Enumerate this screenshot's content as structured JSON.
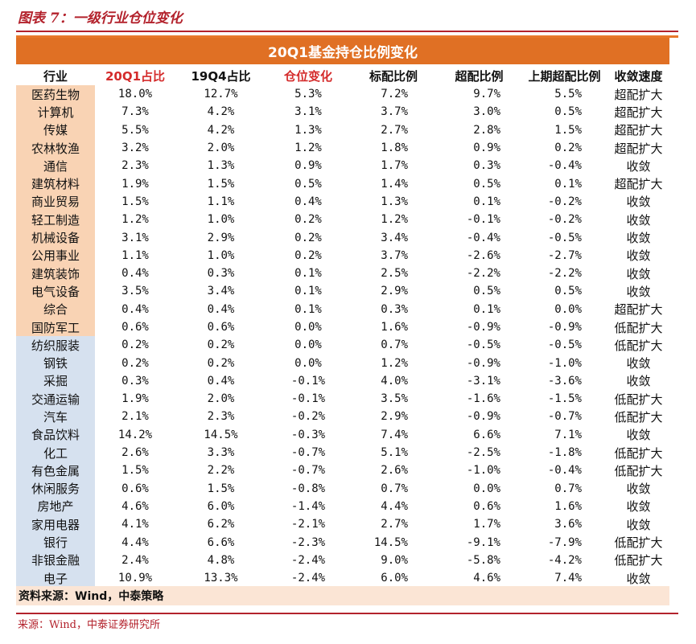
{
  "figure_title": "图表 7：一级行业仓位变化",
  "table_title": "20Q1基金持仓比例变化",
  "columns": [
    "行业",
    "20Q1占比",
    "19Q4占比",
    "仓位变化",
    "标配比例",
    "超配比例",
    "上期超配比例",
    "收敛速度"
  ],
  "rows": [
    {
      "industry": "医药生物",
      "q1": "18.0%",
      "q4": "12.7%",
      "change": "5.3%",
      "standard": "7.2%",
      "over": "9.7%",
      "prev_over": "5.5%",
      "speed": "超配扩大",
      "group": "up"
    },
    {
      "industry": "计算机",
      "q1": "7.3%",
      "q4": "4.2%",
      "change": "3.1%",
      "standard": "3.7%",
      "over": "3.0%",
      "prev_over": "0.5%",
      "speed": "超配扩大",
      "group": "up"
    },
    {
      "industry": "传媒",
      "q1": "5.5%",
      "q4": "4.2%",
      "change": "1.3%",
      "standard": "2.7%",
      "over": "2.8%",
      "prev_over": "1.5%",
      "speed": "超配扩大",
      "group": "up"
    },
    {
      "industry": "农林牧渔",
      "q1": "3.2%",
      "q4": "2.0%",
      "change": "1.2%",
      "standard": "1.8%",
      "over": "0.9%",
      "prev_over": "0.2%",
      "speed": "超配扩大",
      "group": "up"
    },
    {
      "industry": "通信",
      "q1": "2.3%",
      "q4": "1.3%",
      "change": "0.9%",
      "standard": "1.7%",
      "over": "0.3%",
      "prev_over": "-0.4%",
      "speed": "收敛",
      "group": "up"
    },
    {
      "industry": "建筑材料",
      "q1": "1.9%",
      "q4": "1.5%",
      "change": "0.5%",
      "standard": "1.4%",
      "over": "0.5%",
      "prev_over": "0.1%",
      "speed": "超配扩大",
      "group": "up"
    },
    {
      "industry": "商业贸易",
      "q1": "1.5%",
      "q4": "1.1%",
      "change": "0.4%",
      "standard": "1.3%",
      "over": "0.1%",
      "prev_over": "-0.2%",
      "speed": "收敛",
      "group": "up"
    },
    {
      "industry": "轻工制造",
      "q1": "1.2%",
      "q4": "1.0%",
      "change": "0.2%",
      "standard": "1.2%",
      "over": "-0.1%",
      "prev_over": "-0.2%",
      "speed": "收敛",
      "group": "up"
    },
    {
      "industry": "机械设备",
      "q1": "3.1%",
      "q4": "2.9%",
      "change": "0.2%",
      "standard": "3.4%",
      "over": "-0.4%",
      "prev_over": "-0.5%",
      "speed": "收敛",
      "group": "up"
    },
    {
      "industry": "公用事业",
      "q1": "1.1%",
      "q4": "1.0%",
      "change": "0.2%",
      "standard": "3.7%",
      "over": "-2.6%",
      "prev_over": "-2.7%",
      "speed": "收敛",
      "group": "up"
    },
    {
      "industry": "建筑装饰",
      "q1": "0.4%",
      "q4": "0.3%",
      "change": "0.1%",
      "standard": "2.5%",
      "over": "-2.2%",
      "prev_over": "-2.2%",
      "speed": "收敛",
      "group": "up"
    },
    {
      "industry": "电气设备",
      "q1": "3.5%",
      "q4": "3.4%",
      "change": "0.1%",
      "standard": "2.9%",
      "over": "0.5%",
      "prev_over": "0.5%",
      "speed": "收敛",
      "group": "up"
    },
    {
      "industry": "综合",
      "q1": "0.4%",
      "q4": "0.4%",
      "change": "0.1%",
      "standard": "0.3%",
      "over": "0.1%",
      "prev_over": "0.0%",
      "speed": "超配扩大",
      "group": "up"
    },
    {
      "industry": "国防军工",
      "q1": "0.6%",
      "q4": "0.6%",
      "change": "0.0%",
      "standard": "1.6%",
      "over": "-0.9%",
      "prev_over": "-0.9%",
      "speed": "低配扩大",
      "group": "up"
    },
    {
      "industry": "纺织服装",
      "q1": "0.2%",
      "q4": "0.2%",
      "change": "0.0%",
      "standard": "0.7%",
      "over": "-0.5%",
      "prev_over": "-0.5%",
      "speed": "低配扩大",
      "group": "down"
    },
    {
      "industry": "钢铁",
      "q1": "0.2%",
      "q4": "0.2%",
      "change": "0.0%",
      "standard": "1.2%",
      "over": "-0.9%",
      "prev_over": "-1.0%",
      "speed": "收敛",
      "group": "down"
    },
    {
      "industry": "采掘",
      "q1": "0.3%",
      "q4": "0.4%",
      "change": "-0.1%",
      "standard": "4.0%",
      "over": "-3.1%",
      "prev_over": "-3.6%",
      "speed": "收敛",
      "group": "down"
    },
    {
      "industry": "交通运输",
      "q1": "1.9%",
      "q4": "2.0%",
      "change": "-0.1%",
      "standard": "3.5%",
      "over": "-1.6%",
      "prev_over": "-1.5%",
      "speed": "低配扩大",
      "group": "down"
    },
    {
      "industry": "汽车",
      "q1": "2.1%",
      "q4": "2.3%",
      "change": "-0.2%",
      "standard": "2.9%",
      "over": "-0.9%",
      "prev_over": "-0.7%",
      "speed": "低配扩大",
      "group": "down"
    },
    {
      "industry": "食品饮料",
      "q1": "14.2%",
      "q4": "14.5%",
      "change": "-0.3%",
      "standard": "7.4%",
      "over": "6.6%",
      "prev_over": "7.1%",
      "speed": "收敛",
      "group": "down"
    },
    {
      "industry": "化工",
      "q1": "2.6%",
      "q4": "3.3%",
      "change": "-0.7%",
      "standard": "5.1%",
      "over": "-2.5%",
      "prev_over": "-1.8%",
      "speed": "低配扩大",
      "group": "down"
    },
    {
      "industry": "有色金属",
      "q1": "1.5%",
      "q4": "2.2%",
      "change": "-0.7%",
      "standard": "2.6%",
      "over": "-1.0%",
      "prev_over": "-0.4%",
      "speed": "低配扩大",
      "group": "down"
    },
    {
      "industry": "休闲服务",
      "q1": "0.6%",
      "q4": "1.5%",
      "change": "-0.8%",
      "standard": "0.7%",
      "over": "0.0%",
      "prev_over": "0.7%",
      "speed": "收敛",
      "group": "down"
    },
    {
      "industry": "房地产",
      "q1": "4.6%",
      "q4": "6.0%",
      "change": "-1.4%",
      "standard": "4.4%",
      "over": "0.6%",
      "prev_over": "1.6%",
      "speed": "收敛",
      "group": "down"
    },
    {
      "industry": "家用电器",
      "q1": "4.1%",
      "q4": "6.2%",
      "change": "-2.1%",
      "standard": "2.7%",
      "over": "1.7%",
      "prev_over": "3.6%",
      "speed": "收敛",
      "group": "down"
    },
    {
      "industry": "银行",
      "q1": "4.4%",
      "q4": "6.6%",
      "change": "-2.3%",
      "standard": "14.5%",
      "over": "-9.1%",
      "prev_over": "-7.9%",
      "speed": "低配扩大",
      "group": "down"
    },
    {
      "industry": "非银金融",
      "q1": "2.4%",
      "q4": "4.8%",
      "change": "-2.4%",
      "standard": "9.0%",
      "over": "-5.8%",
      "prev_over": "-4.2%",
      "speed": "低配扩大",
      "group": "down"
    },
    {
      "industry": "电子",
      "q1": "10.9%",
      "q4": "13.3%",
      "change": "-2.4%",
      "standard": "6.0%",
      "over": "4.6%",
      "prev_over": "7.4%",
      "speed": "收敛",
      "group": "down"
    }
  ],
  "source_note": "资料来源：Wind，中泰策略",
  "footer_source": "来源：Wind，中泰证券研究所",
  "colors": {
    "title_red": "#b3222c",
    "header_orange": "#e07024",
    "highlight_red": "#d42b2b",
    "increase_bg": "#f9d3b4",
    "decrease_bg": "#d6e1ef",
    "source_bg": "#fbe5d5"
  }
}
